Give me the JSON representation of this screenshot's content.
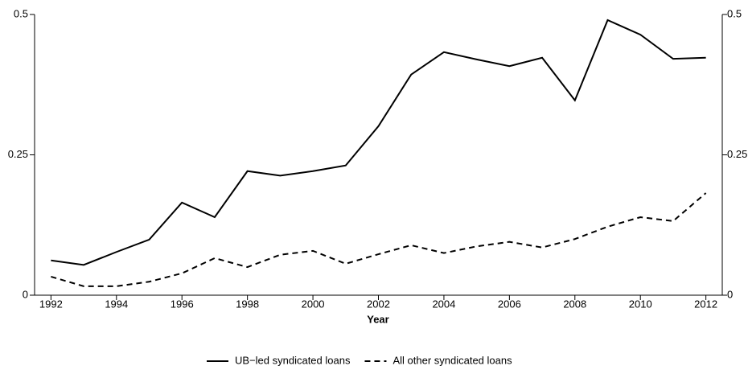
{
  "chart_data": {
    "type": "line",
    "x_label": "Year",
    "x": [
      1992,
      1993,
      1994,
      1995,
      1996,
      1997,
      1998,
      1999,
      2000,
      2001,
      2002,
      2003,
      2004,
      2005,
      2006,
      2007,
      2008,
      2009,
      2010,
      2011,
      2012
    ],
    "series": [
      {
        "name": "UB−led syndicated loans",
        "color": "#000000",
        "dash": "solid",
        "values": [
          0.062,
          0.054,
          0.077,
          0.099,
          0.165,
          0.139,
          0.221,
          0.213,
          0.221,
          0.231,
          0.301,
          0.393,
          0.433,
          0.42,
          0.408,
          0.423,
          0.347,
          0.49,
          0.464,
          0.421,
          0.423
        ]
      },
      {
        "name": "All other syndicated loans",
        "color": "#000000",
        "dash": "dashed",
        "values": [
          0.033,
          0.016,
          0.016,
          0.024,
          0.039,
          0.066,
          0.05,
          0.072,
          0.079,
          0.056,
          0.073,
          0.089,
          0.075,
          0.087,
          0.095,
          0.085,
          0.1,
          0.122,
          0.139,
          0.132,
          0.182
        ]
      }
    ],
    "xlim": [
      1991.5,
      2012.5
    ],
    "xticks": [
      1992,
      1994,
      1996,
      1998,
      2000,
      2002,
      2004,
      2006,
      2008,
      2010,
      2012
    ],
    "ylim": [
      0,
      0.5
    ],
    "yticks": [
      0,
      0.25,
      0.5
    ],
    "y2lim": [
      0,
      0.5
    ],
    "y2ticks": [
      0,
      0.25,
      0.5
    ],
    "legend": "bottom"
  }
}
